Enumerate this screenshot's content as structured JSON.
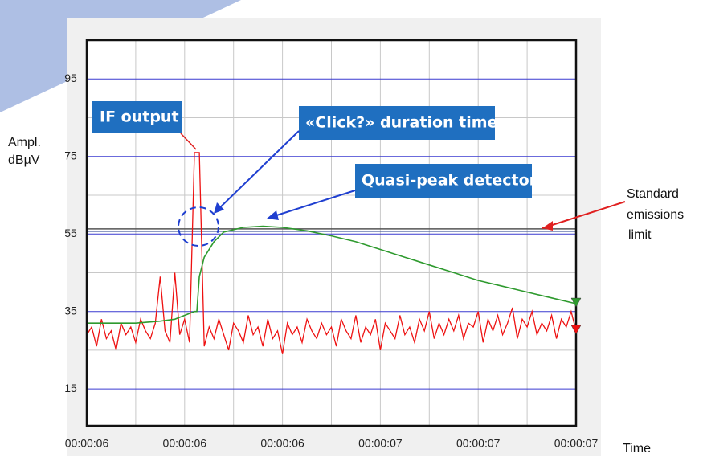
{
  "chart_data": {
    "type": "line",
    "ylabel": [
      "Ampl.",
      "dBµV"
    ],
    "xlabel": "Time",
    "xlim": [
      6.0,
      7.0
    ],
    "xticks": [
      {
        "value": 6.0,
        "label": "00:00:06"
      },
      {
        "value": 6.2,
        "label": "00:00:06"
      },
      {
        "value": 6.4,
        "label": "00:00:06"
      },
      {
        "value": 6.6,
        "label": "00:00:07"
      },
      {
        "value": 6.8,
        "label": "00:00:07"
      },
      {
        "value": 7.0,
        "label": "00:00:07"
      }
    ],
    "ylim": [
      5.5,
      105
    ],
    "yticks": [
      15,
      35,
      55,
      75,
      95
    ],
    "grid": true,
    "limit": 56,
    "limit_label": [
      "Standard",
      "emissions",
      "limit"
    ],
    "annotations": [
      "IF output",
      "«Click?» duration time",
      "Quasi-peak detector"
    ],
    "series": [
      {
        "name": "IF output",
        "color": "#ee1111",
        "x": [
          6.0,
          6.01,
          6.02,
          6.03,
          6.04,
          6.05,
          6.06,
          6.07,
          6.08,
          6.09,
          6.1,
          6.11,
          6.12,
          6.13,
          6.14,
          6.15,
          6.16,
          6.17,
          6.18,
          6.19,
          6.2,
          6.21,
          6.22,
          6.23,
          6.24,
          6.25,
          6.26,
          6.27,
          6.28,
          6.29,
          6.3,
          6.31,
          6.32,
          6.33,
          6.34,
          6.35,
          6.36,
          6.37,
          6.38,
          6.39,
          6.4,
          6.41,
          6.42,
          6.43,
          6.44,
          6.45,
          6.46,
          6.47,
          6.48,
          6.49,
          6.5,
          6.51,
          6.52,
          6.53,
          6.54,
          6.55,
          6.56,
          6.57,
          6.58,
          6.59,
          6.6,
          6.61,
          6.62,
          6.63,
          6.64,
          6.65,
          6.66,
          6.67,
          6.68,
          6.69,
          6.7,
          6.71,
          6.72,
          6.73,
          6.74,
          6.75,
          6.76,
          6.77,
          6.78,
          6.79,
          6.8,
          6.81,
          6.82,
          6.83,
          6.84,
          6.85,
          6.86,
          6.87,
          6.88,
          6.89,
          6.9,
          6.91,
          6.92,
          6.93,
          6.94,
          6.95,
          6.96,
          6.97,
          6.98,
          6.99,
          7.0
        ],
        "values": [
          29,
          31,
          26,
          33,
          28,
          30,
          25,
          32,
          29,
          31,
          27,
          33,
          30,
          28,
          32,
          44,
          30,
          27,
          45,
          29,
          33,
          27,
          76,
          76,
          26,
          31,
          28,
          33,
          29,
          25,
          32,
          30,
          27,
          34,
          29,
          31,
          26,
          33,
          28,
          30,
          24,
          32,
          29,
          31,
          27,
          33,
          30,
          28,
          32,
          29,
          31,
          26,
          33,
          30,
          28,
          34,
          27,
          31,
          29,
          33,
          25,
          32,
          30,
          28,
          34,
          29,
          31,
          27,
          33,
          30,
          35,
          28,
          32,
          29,
          33,
          30,
          34,
          28,
          32,
          31,
          35,
          27,
          33,
          30,
          34,
          29,
          32,
          36,
          28,
          33,
          31,
          35,
          29,
          32,
          30,
          34,
          28,
          33,
          31,
          35,
          30
        ]
      },
      {
        "name": "Quasi-peak detector",
        "color": "#2e9a2e",
        "x": [
          6.0,
          6.05,
          6.1,
          6.15,
          6.18,
          6.2,
          6.22,
          6.225,
          6.23,
          6.24,
          6.26,
          6.28,
          6.32,
          6.36,
          6.4,
          6.45,
          6.5,
          6.55,
          6.6,
          6.65,
          6.7,
          6.75,
          6.8,
          6.85,
          6.9,
          6.95,
          7.0
        ],
        "values": [
          32,
          32,
          32,
          32.5,
          33,
          34,
          35,
          35,
          44,
          49,
          53,
          55.5,
          56.7,
          57,
          56.7,
          55.8,
          54.5,
          53,
          51,
          49,
          47,
          45,
          43,
          41.5,
          40,
          38.5,
          37
        ]
      }
    ]
  }
}
